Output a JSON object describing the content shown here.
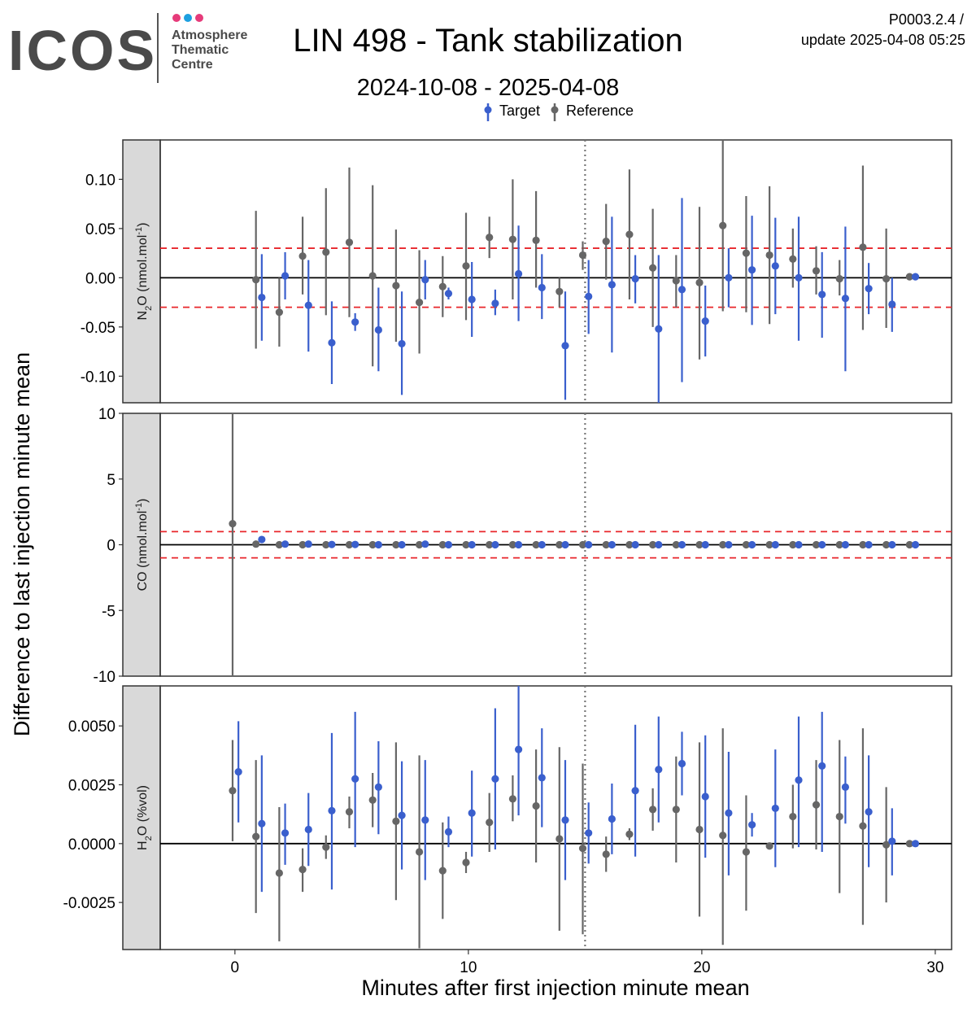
{
  "header": {
    "logo_text": "ICOS",
    "logo_sub": [
      "Atmosphere",
      "Thematic",
      "Centre"
    ],
    "title": "LIN 498 - Tank stabilization",
    "subtitle": "2024-10-08 - 2025-04-08",
    "version": "P0003.2.4 /",
    "update": "update  2025-04-08 05:25",
    "logo_dot_colors": [
      "#e63b7a",
      "#1da0e0",
      "#e63b7a"
    ]
  },
  "legend": {
    "target_label": "Target",
    "reference_label": "Reference",
    "target_color": "#3a5fcd",
    "reference_color": "#666666"
  },
  "axes": {
    "ylabel": "Difference to last injection minute mean",
    "xlabel": "Minutes after first injection minute mean",
    "x_ticks": [
      "0",
      "10",
      "20",
      "30"
    ],
    "x_tick_values": [
      0,
      10,
      20,
      30
    ],
    "xlim": [
      -3.2,
      30.7
    ],
    "vline_x": 15
  },
  "chart_data": [
    {
      "type": "scatter",
      "panel_label_pre": "N",
      "panel_label_sub": "2",
      "panel_label_post": "O (nmol.mol",
      "panel_label_sup": "-1",
      "panel_label_end": ")",
      "ylim": [
        -0.127,
        0.14
      ],
      "y_ticks": [
        "0.10",
        "0.05",
        "0.00",
        "-0.05",
        "-0.10"
      ],
      "y_tick_values": [
        0.1,
        0.05,
        0.0,
        -0.05,
        -0.1
      ],
      "hlines_dashed": [
        0.03,
        -0.03
      ],
      "hline_solid": 0,
      "series": [
        {
          "name": "Reference",
          "x": [
            0.9,
            1.9,
            2.9,
            3.9,
            4.9,
            5.9,
            6.9,
            7.9,
            8.9,
            9.9,
            10.9,
            11.9,
            12.9,
            13.9,
            14.9,
            15.9,
            16.9,
            17.9,
            18.9,
            19.9,
            20.9,
            21.9,
            22.9,
            23.9,
            24.9,
            25.9,
            26.9,
            27.9,
            28.9
          ],
          "y": [
            -0.002,
            -0.035,
            0.022,
            0.026,
            0.036,
            0.002,
            -0.008,
            -0.025,
            -0.009,
            0.012,
            0.041,
            0.039,
            0.038,
            -0.014,
            0.023,
            0.037,
            0.044,
            0.01,
            -0.003,
            -0.005,
            0.053,
            0.025,
            0.023,
            0.019,
            0.007,
            -0.001,
            0.031,
            -0.001,
            0.001
          ],
          "lo": [
            -0.072,
            -0.07,
            -0.017,
            -0.038,
            -0.04,
            -0.09,
            -0.065,
            -0.077,
            -0.04,
            -0.043,
            0.02,
            -0.022,
            -0.01,
            -0.03,
            0.008,
            -0.002,
            -0.022,
            -0.05,
            -0.03,
            -0.083,
            -0.034,
            -0.035,
            -0.047,
            -0.01,
            -0.017,
            -0.018,
            -0.053,
            -0.051,
            -0.001
          ],
          "hi": [
            0.068,
            0.0,
            0.062,
            0.091,
            0.112,
            0.094,
            0.049,
            0.028,
            0.022,
            0.066,
            0.062,
            0.1,
            0.088,
            0.0,
            0.037,
            0.075,
            0.11,
            0.07,
            0.023,
            0.072,
            0.14,
            0.083,
            0.093,
            0.05,
            0.032,
            0.018,
            0.114,
            0.05,
            0.003
          ]
        },
        {
          "name": "Target",
          "x": [
            1.15,
            2.15,
            3.15,
            4.15,
            5.15,
            6.15,
            7.15,
            8.15,
            9.15,
            10.15,
            11.15,
            12.15,
            13.15,
            14.15,
            15.15,
            16.15,
            17.15,
            18.15,
            19.15,
            20.15,
            21.15,
            22.15,
            23.15,
            24.15,
            25.15,
            26.15,
            27.15,
            28.15,
            29.15
          ],
          "y": [
            -0.02,
            0.002,
            -0.028,
            -0.066,
            -0.045,
            -0.053,
            -0.067,
            -0.002,
            -0.016,
            -0.022,
            -0.026,
            0.004,
            -0.01,
            -0.069,
            -0.019,
            -0.007,
            -0.001,
            -0.052,
            -0.012,
            -0.044,
            0.0,
            0.008,
            0.012,
            0.0,
            -0.017,
            -0.021,
            -0.011,
            -0.027,
            0.001
          ],
          "lo": [
            -0.064,
            -0.022,
            -0.075,
            -0.108,
            -0.054,
            -0.095,
            -0.119,
            -0.022,
            -0.022,
            -0.06,
            -0.038,
            -0.044,
            -0.042,
            -0.124,
            -0.057,
            -0.076,
            -0.026,
            -0.127,
            -0.106,
            -0.08,
            -0.03,
            -0.048,
            -0.037,
            -0.064,
            -0.061,
            -0.095,
            -0.037,
            -0.055,
            -0.001
          ],
          "hi": [
            0.024,
            0.026,
            0.018,
            -0.024,
            -0.036,
            -0.01,
            -0.014,
            0.018,
            -0.01,
            0.016,
            -0.012,
            0.053,
            0.024,
            -0.014,
            0.018,
            0.062,
            0.023,
            0.023,
            0.081,
            -0.008,
            0.03,
            0.063,
            0.061,
            0.062,
            0.026,
            0.052,
            0.015,
            0.0,
            0.003
          ]
        }
      ]
    },
    {
      "type": "scatter",
      "panel_label_pre": "CO (nmol.mol",
      "panel_label_sub": "",
      "panel_label_post": "",
      "panel_label_sup": "-1",
      "panel_label_end": ")",
      "ylim": [
        -10,
        10
      ],
      "y_ticks": [
        "10",
        "5",
        "0",
        "-5",
        "-10"
      ],
      "y_tick_values": [
        10,
        5,
        0,
        -5,
        -10
      ],
      "hlines_dashed": [
        1,
        -1
      ],
      "hline_solid": 0,
      "series": [
        {
          "name": "Reference",
          "x": [
            -0.1,
            0.9,
            1.9,
            2.9,
            3.9,
            4.9,
            5.9,
            6.9,
            7.9,
            8.9,
            9.9,
            10.9,
            11.9,
            12.9,
            13.9,
            14.9,
            15.9,
            16.9,
            17.9,
            18.9,
            19.9,
            20.9,
            21.9,
            22.9,
            23.9,
            24.9,
            25.9,
            26.9,
            27.9,
            28.9
          ],
          "y": [
            1.6,
            0.05,
            0,
            0,
            0,
            0,
            0,
            0,
            0,
            0,
            0,
            0,
            0,
            0,
            0,
            0,
            0,
            0,
            0,
            0,
            0,
            0,
            0,
            0,
            0,
            0,
            0,
            0,
            0,
            0
          ],
          "lo": [
            -10,
            0.0,
            0,
            0,
            0,
            0,
            0,
            0,
            0,
            0,
            0,
            0,
            0,
            0,
            0,
            0,
            0,
            0,
            0,
            0,
            0,
            0,
            0,
            0,
            0,
            0,
            0,
            0,
            0,
            0
          ],
          "hi": [
            10,
            0.1,
            0,
            0,
            0,
            0,
            0,
            0,
            0,
            0,
            0,
            0,
            0,
            0,
            0,
            0,
            0,
            0,
            0,
            0,
            0,
            0,
            0,
            0,
            0,
            0,
            0,
            0,
            0,
            0
          ]
        },
        {
          "name": "Target",
          "x": [
            1.15,
            2.15,
            3.15,
            4.15,
            5.15,
            6.15,
            7.15,
            8.15,
            9.15,
            10.15,
            11.15,
            12.15,
            13.15,
            14.15,
            15.15,
            16.15,
            17.15,
            18.15,
            19.15,
            20.15,
            21.15,
            22.15,
            23.15,
            24.15,
            25.15,
            26.15,
            27.15,
            28.15,
            29.15
          ],
          "y": [
            0.4,
            0.05,
            0.05,
            0.02,
            0.02,
            0,
            0,
            0.05,
            0,
            0,
            0,
            0,
            0,
            0,
            0,
            0,
            0,
            0,
            0,
            0,
            0,
            0,
            0,
            0,
            0,
            0,
            0,
            0,
            0
          ],
          "lo": [
            0.3,
            0,
            0,
            0,
            0,
            0,
            0,
            0,
            0,
            0,
            0,
            0,
            0,
            0,
            0,
            0,
            0,
            0,
            0,
            0,
            0,
            0,
            0,
            0,
            0,
            0,
            0,
            0,
            0
          ],
          "hi": [
            0.5,
            0.1,
            0.1,
            0.05,
            0.05,
            0,
            0,
            0.1,
            0,
            0,
            0,
            0,
            0,
            0,
            0,
            0,
            0,
            0,
            0,
            0,
            0,
            0,
            0,
            0,
            0,
            0,
            0,
            0,
            0
          ]
        }
      ]
    },
    {
      "type": "scatter",
      "panel_label_pre": "H",
      "panel_label_sub": "2",
      "panel_label_post": "O (%vol)",
      "panel_label_sup": "",
      "panel_label_end": "",
      "ylim": [
        -0.0045,
        0.0067
      ],
      "y_ticks": [
        "0.0050",
        "0.0025",
        "0.0000",
        "-0.0025"
      ],
      "y_tick_values": [
        0.005,
        0.0025,
        0.0,
        -0.0025
      ],
      "hlines_dashed": [],
      "hline_solid": 0,
      "series": [
        {
          "name": "Reference",
          "x": [
            -0.1,
            0.9,
            1.9,
            2.9,
            3.9,
            4.9,
            5.9,
            6.9,
            7.9,
            8.9,
            9.9,
            10.9,
            11.9,
            12.9,
            13.9,
            14.9,
            15.9,
            16.9,
            17.9,
            18.9,
            19.9,
            20.9,
            21.9,
            22.9,
            23.9,
            24.9,
            25.9,
            26.9,
            27.9,
            28.9
          ],
          "y": [
            0.00225,
            0.0003,
            -0.00125,
            -0.0011,
            -0.00015,
            0.00135,
            0.00185,
            0.00095,
            -0.00035,
            -0.00115,
            -0.0008,
            0.0009,
            0.0019,
            0.0016,
            0.0002,
            -0.0002,
            -0.00045,
            0.0004,
            0.00145,
            0.00145,
            0.0006,
            0.00035,
            -0.00035,
            -0.0001,
            0.00115,
            0.00165,
            0.00115,
            0.00075,
            -5e-05,
            0.0
          ],
          "lo": [
            0.0001,
            -0.00295,
            -0.00415,
            -0.00205,
            -0.00065,
            0.00065,
            0.0007,
            -0.0024,
            -0.00445,
            -0.0032,
            -0.00125,
            -0.00035,
            0.00095,
            -0.0008,
            -0.0037,
            -0.00385,
            -0.0012,
            0.00015,
            0.00055,
            -0.0008,
            -0.0031,
            -0.0043,
            -0.00285,
            -0.00015,
            -0.0002,
            -0.00025,
            -0.0021,
            -0.00345,
            -0.0025,
            0.0
          ],
          "hi": [
            0.0044,
            0.00355,
            0.00155,
            -0.0002,
            0.00035,
            0.002,
            0.003,
            0.0043,
            0.00375,
            0.0009,
            -0.00035,
            0.00215,
            0.0029,
            0.004,
            0.0041,
            0.0034,
            0.0003,
            0.00065,
            0.00235,
            0.0037,
            0.0043,
            0.0049,
            0.00205,
            -5e-05,
            0.0025,
            0.00355,
            0.0044,
            0.0049,
            0.0024,
            0.0
          ]
        },
        {
          "name": "Target",
          "x": [
            0.15,
            1.15,
            2.15,
            3.15,
            4.15,
            5.15,
            6.15,
            7.15,
            8.15,
            9.15,
            10.15,
            11.15,
            12.15,
            13.15,
            14.15,
            15.15,
            16.15,
            17.15,
            18.15,
            19.15,
            20.15,
            21.15,
            22.15,
            23.15,
            24.15,
            25.15,
            26.15,
            27.15,
            28.15,
            29.15
          ],
          "y": [
            0.00305,
            0.00085,
            0.00045,
            0.0006,
            0.0014,
            0.00275,
            0.0024,
            0.0012,
            0.001,
            0.0005,
            0.0013,
            0.00275,
            0.004,
            0.0028,
            0.001,
            0.00045,
            0.00105,
            0.00225,
            0.00315,
            0.0034,
            0.002,
            0.0013,
            0.0008,
            0.0015,
            0.0027,
            0.0033,
            0.0024,
            0.00135,
            0.0001,
            0.0
          ],
          "lo": [
            0.0009,
            -0.00205,
            -0.0009,
            -0.00095,
            -0.00195,
            -0.00015,
            0.0004,
            -0.0011,
            -0.00155,
            -0.00015,
            -0.00055,
            -0.00025,
            0.0012,
            0.0007,
            -0.00155,
            -0.00085,
            -0.00045,
            -0.00055,
            0.0009,
            0.00205,
            -0.0006,
            -0.00135,
            0.0003,
            -0.001,
            -0.00015,
            -0.00035,
            0.00085,
            -0.001,
            -0.00135,
            0.0
          ],
          "hi": [
            0.0052,
            0.00375,
            0.0017,
            0.00215,
            0.0047,
            0.0056,
            0.00435,
            0.0035,
            0.00355,
            0.00115,
            0.0031,
            0.00575,
            0.00685,
            0.0049,
            0.00355,
            0.00175,
            0.00255,
            0.00505,
            0.0054,
            0.00475,
            0.0046,
            0.0039,
            0.0013,
            0.004,
            0.0054,
            0.0056,
            0.0037,
            0.00375,
            0.0015,
            0.0
          ]
        }
      ]
    }
  ]
}
